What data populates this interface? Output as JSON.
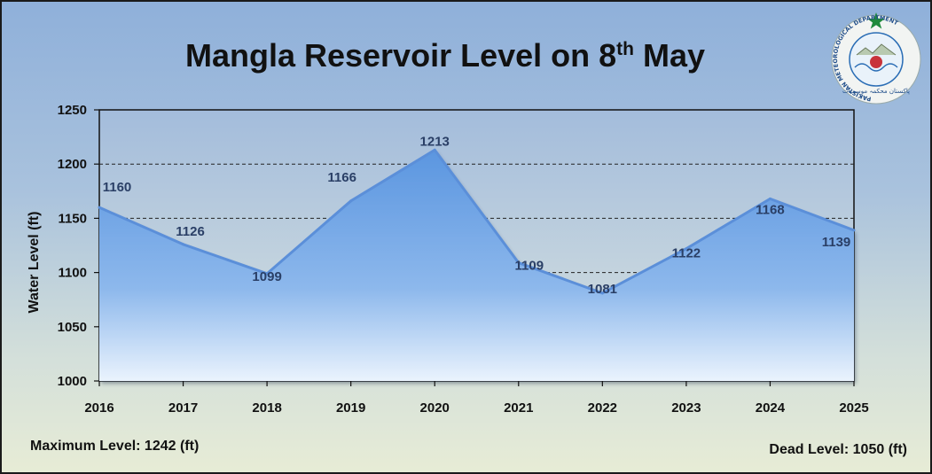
{
  "title": {
    "main": "Mangla Reservoir Level on 8",
    "sup": "th",
    "tail": " May"
  },
  "footer": {
    "max_label": "Maximum Level: 1242 (ft)",
    "dead_label": "Dead Level: 1050 (ft)"
  },
  "logo": {
    "text": "PAKISTAN METEOROLOGICAL DEPARTMENT",
    "urdu_text": "پاکستان محکمہ موسمیات",
    "star_color": "#1f8a3c",
    "ring_color": "#2a6db5"
  },
  "colors": {
    "line": "#5b8fd9",
    "fill_top": "#5b96e0",
    "fill_bottom": "#eaf3fd",
    "label": "#2a3f66"
  },
  "chart_data": {
    "type": "area",
    "x": [
      "2016",
      "2017",
      "2018",
      "2019",
      "2020",
      "2021",
      "2022",
      "2023",
      "2024",
      "2025"
    ],
    "series": [
      {
        "values": [
          1160,
          1126,
          1099,
          1166,
          1213,
          1109,
          1081,
          1122,
          1168,
          1139
        ]
      }
    ],
    "xlabel": "",
    "ylabel": "Water Level (ft)",
    "ylim": [
      1000,
      1250
    ],
    "yticks": [
      1000,
      1050,
      1100,
      1150,
      1200,
      1250
    ],
    "gridlines": [
      1100,
      1150,
      1200
    ],
    "grid": "dashed horizontal",
    "legend": "none",
    "data_labels": true
  }
}
